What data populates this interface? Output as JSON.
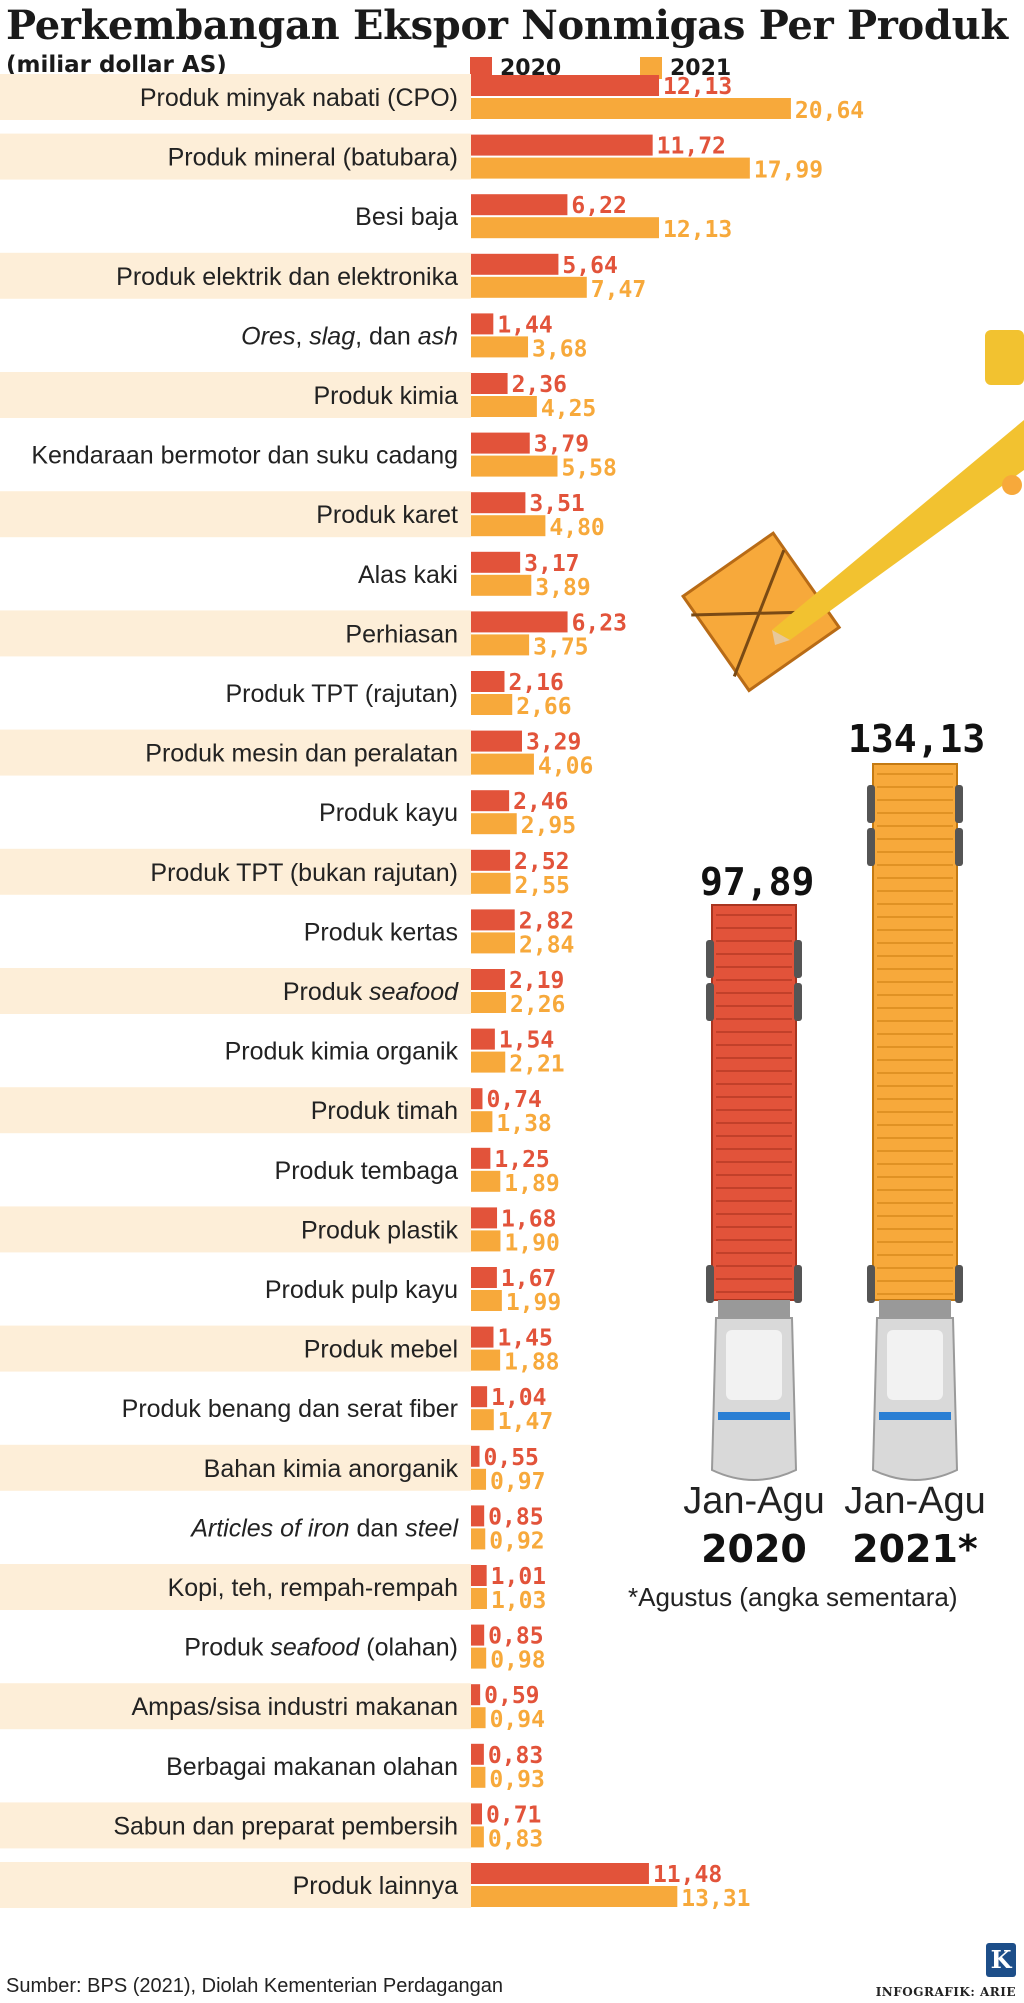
{
  "title": "Perkembangan Ekspor Nonmigas Per Produk",
  "subtitle": "(miliar dollar AS)",
  "legend": [
    {
      "name": "2020",
      "color": "#e2533a"
    },
    {
      "name": "2021",
      "color": "#f7a93b"
    }
  ],
  "chart_data": {
    "type": "bar",
    "orientation": "horizontal",
    "title": "Perkembangan Ekspor Nonmigas Per Produk",
    "unit": "(miliar dollar AS)",
    "categories": [
      "Produk minyak nabati (CPO)",
      "Produk mineral (batubara)",
      "Besi baja",
      "Produk elektrik dan elektronika",
      "Ores, slag, dan ash",
      "Produk kimia",
      "Kendaraan bermotor dan suku cadang",
      "Produk karet",
      "Alas kaki",
      "Perhiasan",
      "Produk TPT (rajutan)",
      "Produk mesin dan peralatan",
      "Produk kayu",
      "Produk TPT (bukan rajutan)",
      "Produk kertas",
      "Produk seafood",
      "Produk kimia organik",
      "Produk timah",
      "Produk tembaga",
      "Produk plastik",
      "Produk pulp kayu",
      "Produk mebel",
      "Produk benang dan serat fiber",
      "Bahan kimia anorganik",
      "Articles of iron dan steel",
      "Kopi, teh, rempah-rempah",
      "Produk seafood (olahan)",
      "Ampas/sisa industri makanan",
      "Berbagai makanan olahan",
      "Sabun dan preparat pembersih",
      "Produk lainnya"
    ],
    "series": [
      {
        "name": "2020",
        "color": "#e2533a",
        "values": [
          12.13,
          11.72,
          6.22,
          5.64,
          1.44,
          2.36,
          3.79,
          3.51,
          3.17,
          6.23,
          2.16,
          3.29,
          2.46,
          2.52,
          2.82,
          2.19,
          1.54,
          0.74,
          1.25,
          1.68,
          1.67,
          1.45,
          1.04,
          0.55,
          0.85,
          1.01,
          0.85,
          0.59,
          0.83,
          0.71,
          11.48
        ],
        "labels": [
          "12,13",
          "11,72",
          "6,22",
          "5,64",
          "1,44",
          "2,36",
          "3,79",
          "3,51",
          "3,17",
          "6,23",
          "2,16",
          "3,29",
          "2,46",
          "2,52",
          "2,82",
          "2,19",
          "1,54",
          "0,74",
          "1,25",
          "1,68",
          "1,67",
          "1,45",
          "1,04",
          "0,55",
          "0,85",
          "1,01",
          "0,85",
          "0,59",
          "0,83",
          "0,71",
          "11,48"
        ]
      },
      {
        "name": "2021",
        "color": "#f7a93b",
        "values": [
          20.64,
          17.99,
          12.13,
          7.47,
          3.68,
          4.25,
          5.58,
          4.8,
          3.89,
          3.75,
          2.66,
          4.06,
          2.95,
          2.55,
          2.84,
          2.26,
          2.21,
          1.38,
          1.89,
          1.9,
          1.99,
          1.88,
          1.47,
          0.97,
          0.92,
          1.03,
          0.98,
          0.94,
          0.93,
          0.83,
          13.31
        ],
        "labels": [
          "20,64",
          "17,99",
          "12,13",
          "7,47",
          "3,68",
          "4,25",
          "5,58",
          "4,80",
          "3,89",
          "3,75",
          "2,66",
          "4,06",
          "2,95",
          "2,55",
          "2,84",
          "2,26",
          "2,21",
          "1,38",
          "1,89",
          "1,90",
          "1,99",
          "1,88",
          "1,47",
          "0,97",
          "0,92",
          "1,03",
          "0,98",
          "0,94",
          "0,93",
          "0,83",
          "13,31"
        ]
      }
    ],
    "totals": [
      {
        "period": "Jan-Agu",
        "year": "2020",
        "value": 97.89,
        "label": "97,89",
        "color": "#e2533a"
      },
      {
        "period": "Jan-Agu",
        "year": "2021*",
        "value": 134.13,
        "label": "134,13",
        "color": "#f7a93b"
      }
    ]
  },
  "note": "*Agustus (angka sementara)",
  "source": "Sumber: BPS (2021), Diolah Kementerian Perdagangan",
  "credit": "INFOGRAFIK: ARIE",
  "logo_letter": "K",
  "row_bg_color": "#fdeed8"
}
